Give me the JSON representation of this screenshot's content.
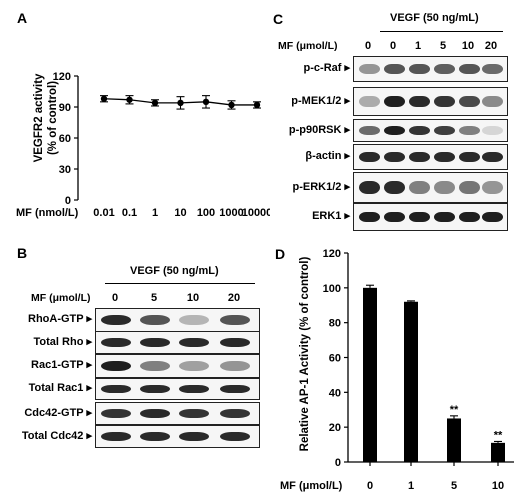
{
  "panels": {
    "A": {
      "letter": "A",
      "chart_data": {
        "type": "line",
        "x": [
          "0.01",
          "0.1",
          "1",
          "10",
          "100",
          "1000",
          "10000"
        ],
        "values": [
          98,
          97,
          94,
          94,
          95,
          92,
          92
        ],
        "errors": [
          3,
          4,
          3,
          6,
          6,
          4,
          3
        ],
        "ylabel": "VEGFR2 activity\n(% of control)",
        "ylabel_lines": [
          "VEGFR2 activity",
          "(% of control)"
        ],
        "xlabel": "MF (nmol/L)",
        "ylim": [
          0,
          120
        ],
        "yticks": [
          0,
          30,
          60,
          90,
          120
        ],
        "xtick_labels": [
          "0.01",
          "0.1",
          "1",
          "10",
          "100",
          "1000",
          "10000"
        ]
      }
    },
    "B": {
      "letter": "B",
      "treatment": "VEGF (50 ng/mL)",
      "mf_label": "MF (μmol/L)",
      "lanes": [
        "0",
        "5",
        "10",
        "20"
      ],
      "rows": [
        {
          "label": "RhoA-GTP",
          "intensity": [
            0.9,
            0.7,
            0.25,
            0.7
          ]
        },
        {
          "label": "Total Rho",
          "intensity": [
            0.9,
            0.9,
            0.9,
            0.9
          ]
        },
        {
          "label": "Rac1-GTP",
          "intensity": [
            0.95,
            0.5,
            0.35,
            0.4
          ]
        },
        {
          "label": "Total Rac1",
          "intensity": [
            0.9,
            0.9,
            0.9,
            0.9
          ]
        },
        {
          "label": "Cdc42-GTP",
          "intensity": [
            0.85,
            0.9,
            0.85,
            0.85
          ]
        },
        {
          "label": "Total Cdc42",
          "intensity": [
            0.9,
            0.9,
            0.9,
            0.9
          ]
        }
      ]
    },
    "C": {
      "letter": "C",
      "treatment": "VEGF (50 ng/mL)",
      "mf_label": "MF (μmol/L)",
      "lanes": [
        "0",
        "0",
        "1",
        "5",
        "10",
        "20"
      ],
      "rows": [
        {
          "label": "p-c-Raf",
          "intensity": [
            0.4,
            0.7,
            0.7,
            0.65,
            0.7,
            0.6
          ]
        },
        {
          "label": "p-MEK1/2",
          "intensity": [
            0.3,
            0.95,
            0.9,
            0.85,
            0.75,
            0.45
          ]
        },
        {
          "label": "p-p90RSK",
          "intensity": [
            0.6,
            0.95,
            0.85,
            0.8,
            0.5,
            0.1
          ]
        },
        {
          "label": "β-actin",
          "intensity": [
            0.9,
            0.9,
            0.9,
            0.9,
            0.9,
            0.9
          ]
        },
        {
          "label": "p-ERK1/2",
          "intensity": [
            0.9,
            0.9,
            0.5,
            0.45,
            0.55,
            0.4
          ]
        },
        {
          "label": "ERK1",
          "intensity": [
            0.95,
            0.95,
            0.95,
            0.95,
            0.95,
            0.95
          ]
        }
      ]
    },
    "D": {
      "letter": "D",
      "chart_data": {
        "type": "bar",
        "categories": [
          "0",
          "1",
          "5",
          "10"
        ],
        "values": [
          100,
          92,
          25,
          11
        ],
        "errors": [
          1.5,
          0.5,
          1.5,
          0.8
        ],
        "annotations": [
          "",
          "",
          "**",
          "**"
        ],
        "ylabel": "Relative AP-1 Activity (% of control)",
        "xlabel": "MF (μmol/L)",
        "ylim": [
          0,
          120
        ],
        "yticks": [
          0,
          20,
          40,
          60,
          80,
          100,
          120
        ]
      }
    }
  }
}
